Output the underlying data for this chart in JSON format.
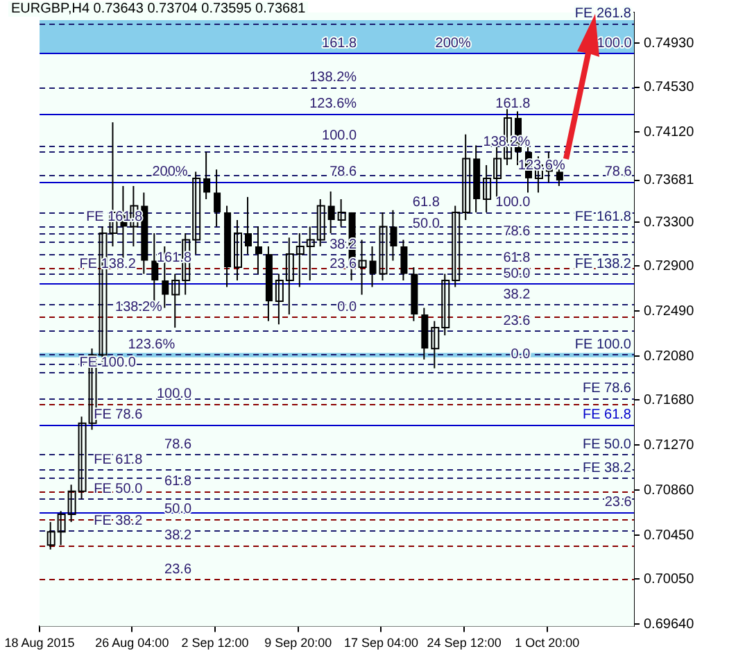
{
  "chart_data": {
    "type": "candlestick",
    "title": "EURGBP,H4  0.73643 0.73704 0.73595 0.73681",
    "x": [
      "2015-08-18T23:00",
      "2015-08-19T21:00",
      "2015-08-20T19:00",
      "2015-08-21T17:00",
      "2015-08-22T15:00",
      "2015-08-23T13:00",
      "2015-08-24T11:00",
      "2015-08-25T09:00",
      "2015-08-26T07:00",
      "2015-08-27T05:00",
      "2015-08-28T03:00",
      "2015-08-29T01:00",
      "2015-08-29T23:00",
      "2015-08-30T21:00",
      "2015-08-31T19:00",
      "2015-09-01T17:00",
      "2015-09-02T15:00",
      "2015-09-03T13:00",
      "2015-09-04T11:00",
      "2015-09-05T09:00",
      "2015-09-06T07:00",
      "2015-09-07T05:00",
      "2015-09-08T03:00",
      "2015-09-09T01:00",
      "2015-09-09T23:00",
      "2015-09-10T21:00",
      "2015-09-11T19:00",
      "2015-09-12T17:00",
      "2015-09-13T15:00",
      "2015-09-14T13:00",
      "2015-09-15T11:00",
      "2015-09-16T09:00",
      "2015-09-17T07:00",
      "2015-09-18T05:00",
      "2015-09-19T03:00",
      "2015-09-20T01:00",
      "2015-09-20T23:00",
      "2015-09-21T21:00",
      "2015-09-22T19:00",
      "2015-09-23T17:00",
      "2015-09-24T15:00",
      "2015-09-25T13:00",
      "2015-09-26T11:00",
      "2015-09-27T09:00",
      "2015-09-28T07:00",
      "2015-09-29T05:00",
      "2015-09-30T03:00",
      "2015-10-01T01:00",
      "2015-10-01T23:00",
      "2015-10-02T21:00"
    ],
    "ohlc": [
      [
        0.7036,
        0.7057,
        0.7032,
        0.7048
      ],
      [
        0.7048,
        0.7067,
        0.7036,
        0.7064
      ],
      [
        0.7064,
        0.7091,
        0.7057,
        0.7085
      ],
      [
        0.7085,
        0.7153,
        0.7078,
        0.7147
      ],
      [
        0.7147,
        0.7215,
        0.7141,
        0.7209
      ],
      [
        0.7209,
        0.7326,
        0.7203,
        0.732
      ],
      [
        0.732,
        0.7421,
        0.7308,
        0.7339
      ],
      [
        0.7339,
        0.7363,
        0.7295,
        0.7326
      ],
      [
        0.7326,
        0.7363,
        0.7308,
        0.7345
      ],
      [
        0.7345,
        0.7357,
        0.7283,
        0.7295
      ],
      [
        0.7295,
        0.732,
        0.7258,
        0.7277
      ],
      [
        0.7277,
        0.7308,
        0.7252,
        0.7264
      ],
      [
        0.7264,
        0.7283,
        0.7234,
        0.7277
      ],
      [
        0.7277,
        0.732,
        0.7264,
        0.7314
      ],
      [
        0.7314,
        0.7376,
        0.7301,
        0.737
      ],
      [
        0.737,
        0.7394,
        0.7351,
        0.7357
      ],
      [
        0.7357,
        0.7378,
        0.7326,
        0.7339
      ],
      [
        0.7339,
        0.7345,
        0.7271,
        0.7289
      ],
      [
        0.7289,
        0.7332,
        0.7277,
        0.732
      ],
      [
        0.732,
        0.7353,
        0.7301,
        0.7308
      ],
      [
        0.7308,
        0.7326,
        0.7283,
        0.7301
      ],
      [
        0.7301,
        0.7308,
        0.724,
        0.7258
      ],
      [
        0.7258,
        0.7283,
        0.7237,
        0.7277
      ],
      [
        0.7277,
        0.7316,
        0.7246,
        0.7301
      ],
      [
        0.7301,
        0.732,
        0.7271,
        0.7308
      ],
      [
        0.7308,
        0.7326,
        0.7277,
        0.7314
      ],
      [
        0.7314,
        0.7351,
        0.7308,
        0.7345
      ],
      [
        0.7345,
        0.7358,
        0.732,
        0.7332
      ],
      [
        0.7332,
        0.7351,
        0.7326,
        0.7339
      ],
      [
        0.7339,
        0.7339,
        0.7277,
        0.7289
      ],
      [
        0.7289,
        0.7314,
        0.7264,
        0.7295
      ],
      [
        0.7295,
        0.7308,
        0.7271,
        0.7283
      ],
      [
        0.7283,
        0.7339,
        0.7277,
        0.7326
      ],
      [
        0.7326,
        0.7341,
        0.7295,
        0.7308
      ],
      [
        0.7308,
        0.7314,
        0.7277,
        0.7283
      ],
      [
        0.7283,
        0.7289,
        0.724,
        0.7246
      ],
      [
        0.7246,
        0.7252,
        0.7205,
        0.7215
      ],
      [
        0.7215,
        0.724,
        0.7197,
        0.7234
      ],
      [
        0.7234,
        0.7283,
        0.7227,
        0.7277
      ],
      [
        0.7277,
        0.7345,
        0.7271,
        0.7339
      ],
      [
        0.7339,
        0.741,
        0.7332,
        0.7388
      ],
      [
        0.7388,
        0.74,
        0.7339,
        0.7351
      ],
      [
        0.7351,
        0.7382,
        0.7339,
        0.737
      ],
      [
        0.737,
        0.74,
        0.7351,
        0.7388
      ],
      [
        0.7388,
        0.7435,
        0.7382,
        0.7425
      ],
      [
        0.7425,
        0.7431,
        0.7382,
        0.7394
      ],
      [
        0.7394,
        0.74,
        0.7357,
        0.737
      ],
      [
        0.737,
        0.739,
        0.7357,
        0.7382
      ],
      [
        0.7382,
        0.7394,
        0.7366,
        0.7376
      ],
      [
        0.7376,
        0.7378,
        0.7363,
        0.73681
      ]
    ],
    "color": "#000000",
    "xlim": [
      "2015-08-18T00:00",
      "2015-10-09T12:00"
    ],
    "xticks": [
      {
        "value": "2015-08-18T00:00",
        "label": "18 Aug 2015"
      },
      {
        "value": "2015-08-26T04:00",
        "label": "26 Aug 04:00"
      },
      {
        "value": "2015-09-02T12:00",
        "label": "2 Sep 12:00"
      },
      {
        "value": "2015-09-09T20:00",
        "label": "9 Sep 20:00"
      },
      {
        "value": "2015-09-17T04:00",
        "label": "17 Sep 04:00"
      },
      {
        "value": "2015-09-24T12:00",
        "label": "24 Sep 12:00"
      },
      {
        "value": "2015-10-01T20:00",
        "label": "1 Oct 20:00"
      }
    ],
    "ylim": [
      0.6962,
      0.7521
    ],
    "yticks": [
      {
        "value": 0.7493,
        "label": "0.74930"
      },
      {
        "value": 0.7453,
        "label": "0.74530"
      },
      {
        "value": 0.7412,
        "label": "0.74120"
      },
      {
        "value": 0.73681,
        "label": "0.73681"
      },
      {
        "value": 0.733,
        "label": "0.73300"
      },
      {
        "value": 0.729,
        "label": "0.72900"
      },
      {
        "value": 0.7249,
        "label": "0.72490"
      },
      {
        "value": 0.7208,
        "label": "0.72080"
      },
      {
        "value": 0.7168,
        "label": "0.71680"
      },
      {
        "value": 0.7127,
        "label": "0.71270"
      },
      {
        "value": 0.7086,
        "label": "0.70860"
      },
      {
        "value": 0.7045,
        "label": "0.70450"
      },
      {
        "value": 0.7005,
        "label": "0.70050"
      },
      {
        "value": 0.6964,
        "label": "0.69640"
      }
    ],
    "legend": false,
    "bands": [
      {
        "axis": "y",
        "from": 0.7484,
        "to": 0.7514,
        "color": "#87ceeb"
      },
      {
        "axis": "y",
        "from": 0.7207,
        "to": 0.7211,
        "color": "#87ceeb"
      }
    ],
    "ref_lines": [
      {
        "axis": "y",
        "value": 0.7484,
        "color": "#0000cc",
        "line_style": "solid"
      },
      {
        "axis": "y",
        "value": 0.7429,
        "color": "#0000cc",
        "line_style": "solid"
      },
      {
        "axis": "y",
        "value": 0.7367,
        "color": "#0000cc",
        "line_style": "solid"
      },
      {
        "axis": "y",
        "value": 0.7274,
        "color": "#0000cc",
        "line_style": "solid"
      },
      {
        "axis": "y",
        "value": 0.7146,
        "label": "FE 61.8",
        "color": "#0000cc",
        "line_style": "solid"
      },
      {
        "axis": "y",
        "value": 0.7066,
        "color": "#0000cc",
        "line_style": "solid"
      },
      {
        "axis": "y",
        "value": 0.7289,
        "color": "#8b0000",
        "line_style": "dashed"
      },
      {
        "axis": "y",
        "value": 0.7244,
        "color": "#8b0000",
        "line_style": "dashed"
      },
      {
        "axis": "y",
        "value": 0.7165,
        "color": "#8b0000",
        "line_style": "dashed"
      },
      {
        "axis": "y",
        "value": 0.7085,
        "color": "#8b0000",
        "line_style": "dashed"
      },
      {
        "axis": "y",
        "value": 0.706,
        "color": "#8b0000",
        "line_style": "dashed"
      },
      {
        "axis": "y",
        "value": 0.7036,
        "color": "#8b0000",
        "line_style": "dashed"
      },
      {
        "axis": "y",
        "value": 0.7005,
        "color": "#8b0000",
        "line_style": "dashed"
      },
      {
        "axis": "y",
        "value": 0.7511,
        "label": "FE 261.8",
        "color": "#1a1a6e",
        "line_style": "dashed"
      },
      {
        "axis": "y",
        "value": 0.7453,
        "color": "#1a1a6e",
        "line_style": "dashed"
      },
      {
        "axis": "y",
        "value": 0.74,
        "color": "#1a1a6e",
        "line_style": "dashed"
      },
      {
        "axis": "y",
        "value": 0.7394,
        "color": "#1a1a6e",
        "line_style": "dashed"
      },
      {
        "axis": "y",
        "value": 0.7373,
        "color": "#1a1a6e",
        "line_style": "dashed"
      },
      {
        "axis": "y",
        "value": 0.7339,
        "color": "#1a1a6e",
        "line_style": "dashed"
      },
      {
        "axis": "y",
        "value": 0.7326,
        "label": "FE 161.8",
        "color": "#1a1a6e",
        "line_style": "dashed"
      },
      {
        "axis": "y",
        "value": 0.732,
        "color": "#1a1a6e",
        "line_style": "dashed"
      },
      {
        "axis": "y",
        "value": 0.7313,
        "color": "#1a1a6e",
        "line_style": "dashed"
      },
      {
        "axis": "y",
        "value": 0.7301,
        "color": "#1a1a6e",
        "line_style": "dashed"
      },
      {
        "axis": "y",
        "value": 0.7283,
        "label": "FE 138.2",
        "color": "#1a1a6e",
        "line_style": "dashed"
      },
      {
        "axis": "y",
        "value": 0.7255,
        "color": "#1a1a6e",
        "line_style": "dashed"
      },
      {
        "axis": "y",
        "value": 0.7231,
        "color": "#1a1a6e",
        "line_style": "dashed"
      },
      {
        "axis": "y",
        "value": 0.721,
        "label": "FE 100.0",
        "color": "#1a1a6e",
        "line_style": "dashed"
      },
      {
        "axis": "y",
        "value": 0.7201,
        "color": "#1a1a6e",
        "line_style": "dashed"
      },
      {
        "axis": "y",
        "value": 0.7193,
        "color": "#1a1a6e",
        "line_style": "dashed"
      },
      {
        "axis": "y",
        "value": 0.717,
        "label": "FE 78.6",
        "color": "#1a1a6e",
        "line_style": "dashed"
      },
      {
        "axis": "y",
        "value": 0.7119,
        "label": "FE 50.0",
        "color": "#1a1a6e",
        "line_style": "dashed"
      },
      {
        "axis": "y",
        "value": 0.7105,
        "color": "#1a1a6e",
        "line_style": "dashed"
      },
      {
        "axis": "y",
        "value": 0.7097,
        "label": "FE 38.2",
        "color": "#1a1a6e",
        "line_style": "dashed"
      },
      {
        "axis": "y",
        "value": 0.7078,
        "color": "#1a1a6e",
        "line_style": "dashed"
      },
      {
        "axis": "y",
        "value": 0.7049,
        "color": "#1a1a6e",
        "line_style": "dashed"
      }
    ],
    "annotations": [
      {
        "text": "200%",
        "x": "2015-08-31T02:00",
        "y": 0.7367
      },
      {
        "text": "161.8",
        "x": "2015-08-31T10:00",
        "y": 0.7289
      },
      {
        "text": "138.2%",
        "x": "2015-08-28T20:00",
        "y": 0.7244
      },
      {
        "text": "123.6%",
        "x": "2015-08-29T23:00",
        "y": 0.721
      },
      {
        "text": "100.0",
        "x": "2015-08-31T10:00",
        "y": 0.7165
      },
      {
        "text": "78.6",
        "x": "2015-08-31T10:00",
        "y": 0.7119
      },
      {
        "text": "61.8",
        "x": "2015-08-31T10:00",
        "y": 0.7085
      },
      {
        "text": "50.0",
        "x": "2015-08-31T10:00",
        "y": 0.706
      },
      {
        "text": "38.2",
        "x": "2015-08-31T10:00",
        "y": 0.7036
      },
      {
        "text": "23.6",
        "x": "2015-08-31T10:00",
        "y": 0.7005
      },
      {
        "text": "FE 161.8",
        "x": "2015-08-27T02:00",
        "y": 0.7326
      },
      {
        "text": "FE 138.2",
        "x": "2015-08-26T12:00",
        "y": 0.7283
      },
      {
        "text": "FE 100.0",
        "x": "2015-08-26T12:00",
        "y": 0.7193
      },
      {
        "text": "FE 78.6",
        "x": "2015-08-27T02:00",
        "y": 0.7146
      },
      {
        "text": "FE 61.8",
        "x": "2015-08-27T02:00",
        "y": 0.7105
      },
      {
        "text": "FE 50.0",
        "x": "2015-08-27T02:00",
        "y": 0.7078
      },
      {
        "text": "FE 38.2",
        "x": "2015-08-27T02:00",
        "y": 0.7049
      },
      {
        "text": "161.8",
        "x": "2015-09-15T00:00",
        "y": 0.7484
      },
      {
        "text": "138.2%",
        "x": "2015-09-15T00:00",
        "y": 0.7453
      },
      {
        "text": "123.6%",
        "x": "2015-09-15T00:00",
        "y": 0.7429
      },
      {
        "text": "100.0",
        "x": "2015-09-15T00:00",
        "y": 0.74
      },
      {
        "text": "78.6",
        "x": "2015-09-15T00:00",
        "y": 0.7367
      },
      {
        "text": "61.8",
        "x": "2015-09-22T08:00",
        "y": 0.7339
      },
      {
        "text": "50.0",
        "x": "2015-09-22T08:00",
        "y": 0.732
      },
      {
        "text": "38.2",
        "x": "2015-09-15T00:00",
        "y": 0.7301
      },
      {
        "text": "23.6",
        "x": "2015-09-15T00:00",
        "y": 0.7283
      },
      {
        "text": "0.0",
        "x": "2015-09-15T00:00",
        "y": 0.7244
      },
      {
        "text": "161.8",
        "x": "2015-09-30T08:00",
        "y": 0.7429
      },
      {
        "text": "138.2%",
        "x": "2015-09-30T08:00",
        "y": 0.7394
      },
      {
        "text": "123.6%",
        "x": "2015-10-03T10:00",
        "y": 0.7373
      },
      {
        "text": "100.0",
        "x": "2015-09-30T08:00",
        "y": 0.7339
      },
      {
        "text": "78.6",
        "x": "2015-09-30T08:00",
        "y": 0.7313
      },
      {
        "text": "61.8",
        "x": "2015-09-30T08:00",
        "y": 0.7289
      },
      {
        "text": "50.0",
        "x": "2015-09-30T08:00",
        "y": 0.7274
      },
      {
        "text": "38.2",
        "x": "2015-09-30T08:00",
        "y": 0.7255
      },
      {
        "text": "23.6",
        "x": "2015-09-30T08:00",
        "y": 0.7231
      },
      {
        "text": "0.0",
        "x": "2015-09-30T08:00",
        "y": 0.7201
      },
      {
        "text": "200%",
        "x": "2015-09-25T02:00",
        "y": 0.7484
      },
      {
        "text": "100.0",
        "x": "2015-10-09T07:00",
        "y": 0.7484
      },
      {
        "text": "78.6",
        "x": "2015-10-09T07:00",
        "y": 0.7367
      },
      {
        "text": "23.6",
        "x": "2015-10-09T07:00",
        "y": 0.7066
      }
    ]
  }
}
